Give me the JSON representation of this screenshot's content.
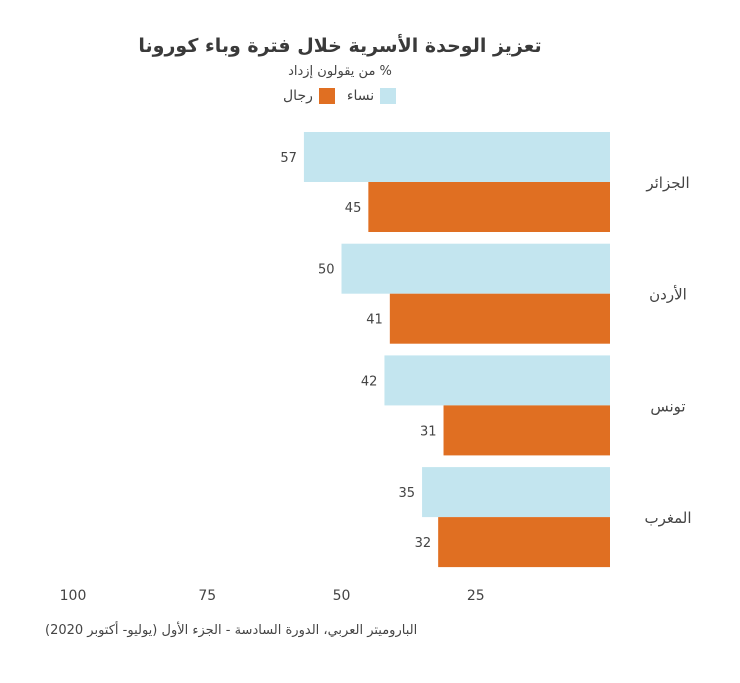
{
  "chart_data": {
    "type": "bar",
    "orientation": "horizontal",
    "x_axis_reversed": true,
    "title": "تعزيز الوحدة الأسرية خلال فترة وباء كورونا",
    "subtitle": "% من يقولون إزداد",
    "categories": [
      "الجزائر",
      "الأردن",
      "تونس",
      "المغرب"
    ],
    "series": [
      {
        "name": "نساء",
        "color": "#c3e5ef",
        "values": [
          57,
          50,
          42,
          35
        ]
      },
      {
        "name": "رجال",
        "color": "#e06f22",
        "values": [
          45,
          41,
          31,
          32
        ]
      }
    ],
    "xticks": [
      100,
      75,
      50,
      25
    ],
    "xlim": [
      0,
      100
    ],
    "grid": false,
    "legend_position": "top-center"
  },
  "source": "الباروميتر العربي، الدورة السادسة - الجزء الأول (يوليو- أكتوبر 2020)"
}
